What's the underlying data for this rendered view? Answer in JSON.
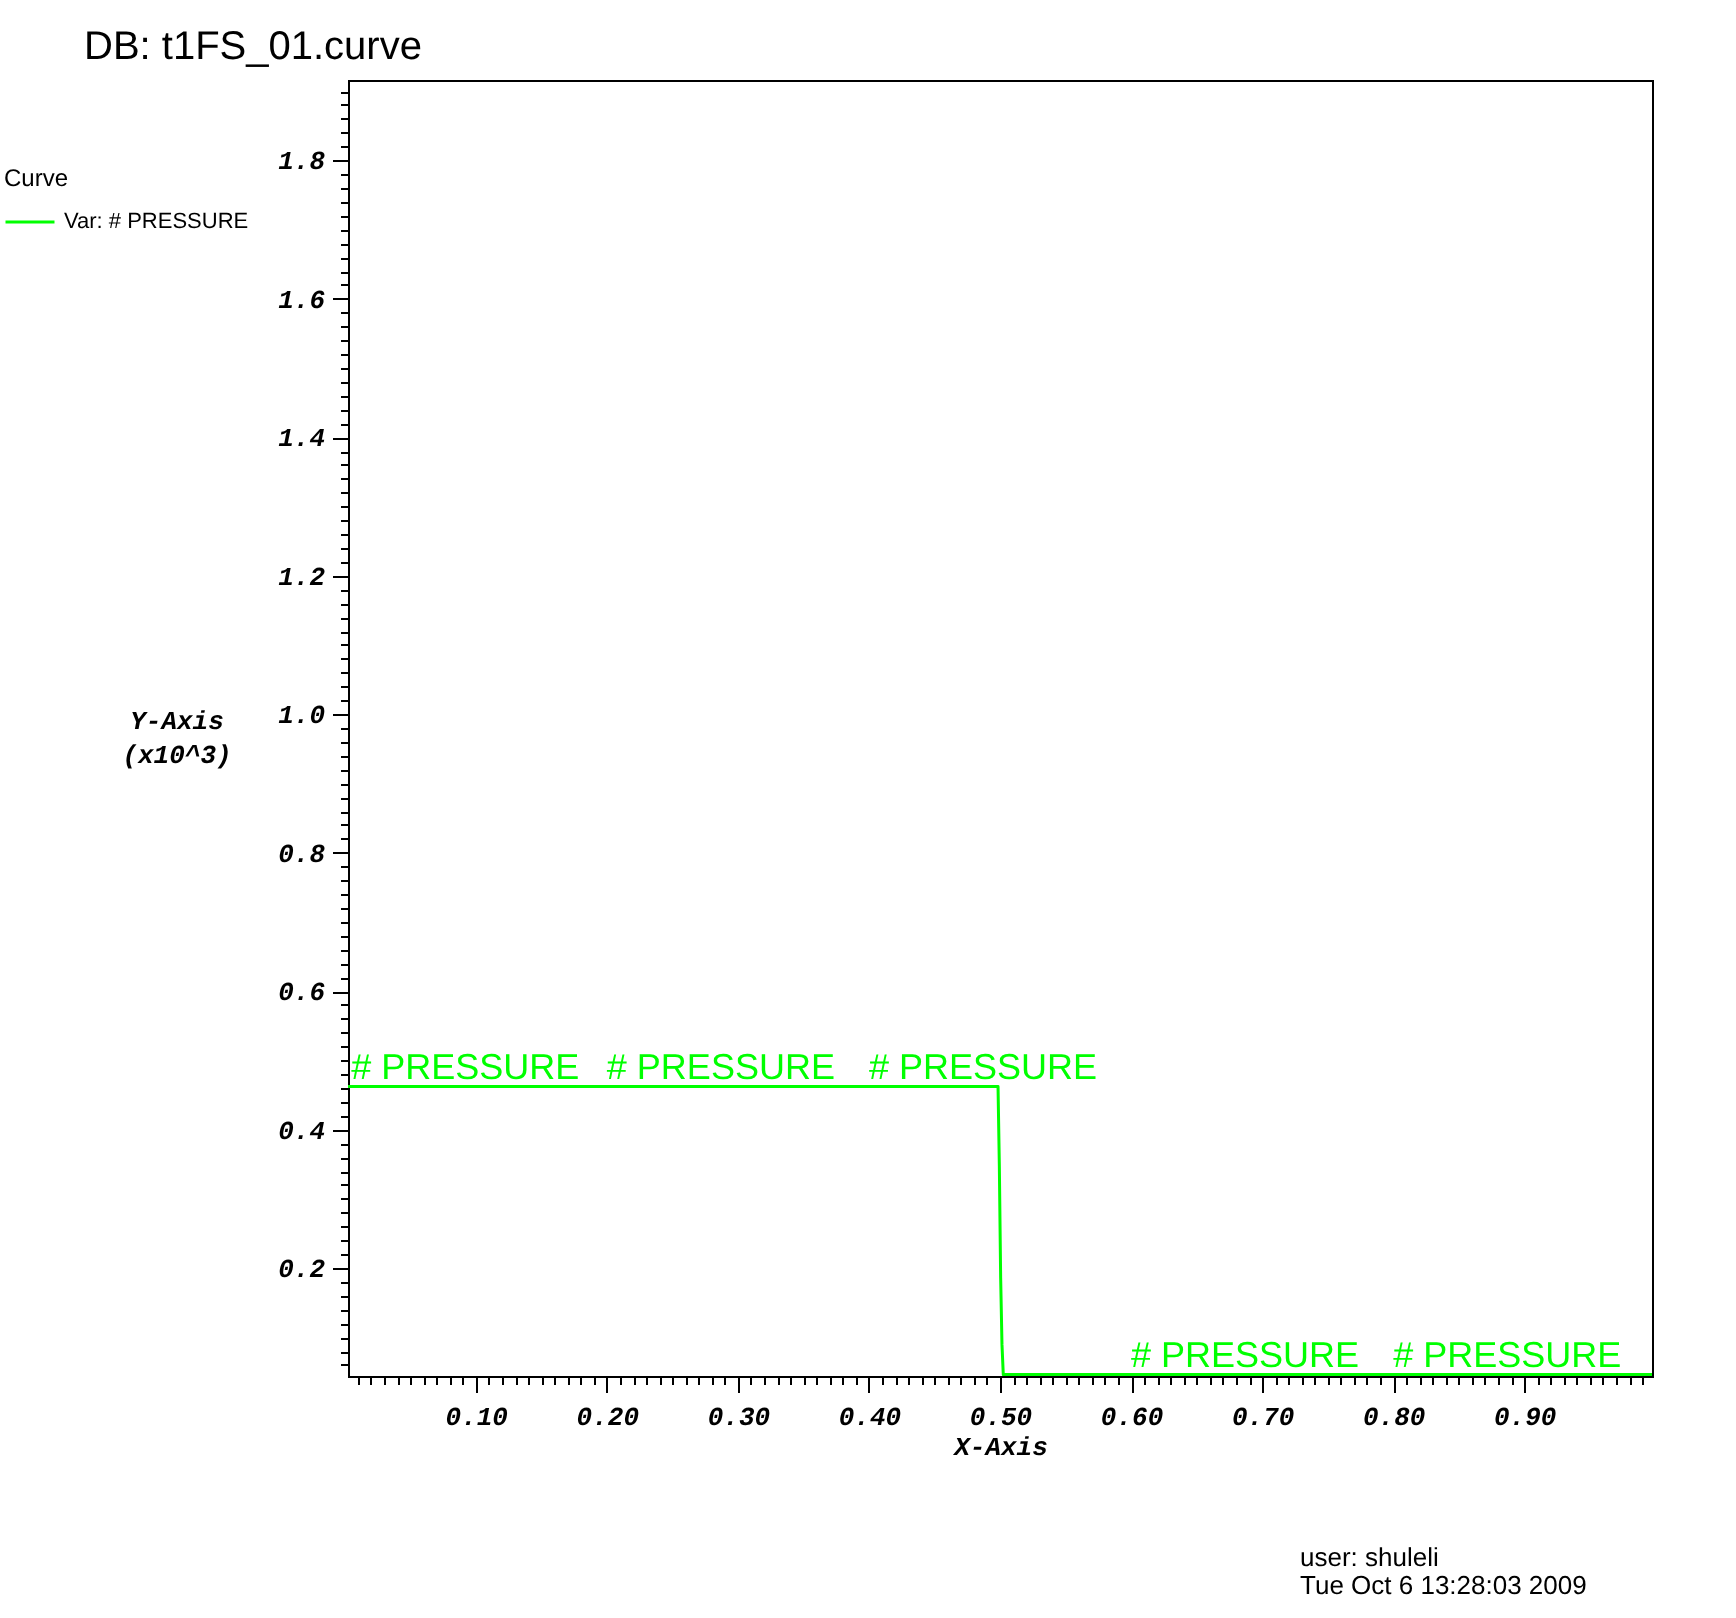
{
  "chart_data": {
    "type": "line",
    "title": "DB: t1FS_01.curve",
    "xlabel": "X-Axis",
    "ylabel": "Y-Axis\n(x10^3)",
    "legend_title": "Curve",
    "legend": "top left",
    "grid": false,
    "line_style": "solid",
    "xlim": [
      0.0025,
      0.9975
    ],
    "ylim": [
      0.044,
      1.916
    ],
    "xticks": [
      {
        "value": 0.01,
        "label": null
      },
      {
        "value": 0.02,
        "label": null
      },
      {
        "value": 0.03,
        "label": null
      },
      {
        "value": 0.04,
        "label": null
      },
      {
        "value": 0.05,
        "label": null
      },
      {
        "value": 0.06,
        "label": null
      },
      {
        "value": 0.07,
        "label": null
      },
      {
        "value": 0.08,
        "label": null
      },
      {
        "value": 0.09,
        "label": null
      },
      {
        "value": 0.1,
        "label": "0.10"
      },
      {
        "value": 0.11,
        "label": null
      },
      {
        "value": 0.12,
        "label": null
      },
      {
        "value": 0.13,
        "label": null
      },
      {
        "value": 0.14,
        "label": null
      },
      {
        "value": 0.15,
        "label": null
      },
      {
        "value": 0.16,
        "label": null
      },
      {
        "value": 0.17,
        "label": null
      },
      {
        "value": 0.18,
        "label": null
      },
      {
        "value": 0.19,
        "label": null
      },
      {
        "value": 0.2,
        "label": "0.20"
      },
      {
        "value": 0.21,
        "label": null
      },
      {
        "value": 0.22,
        "label": null
      },
      {
        "value": 0.23,
        "label": null
      },
      {
        "value": 0.24,
        "label": null
      },
      {
        "value": 0.25,
        "label": null
      },
      {
        "value": 0.26,
        "label": null
      },
      {
        "value": 0.27,
        "label": null
      },
      {
        "value": 0.28,
        "label": null
      },
      {
        "value": 0.29,
        "label": null
      },
      {
        "value": 0.3,
        "label": "0.30"
      },
      {
        "value": 0.31,
        "label": null
      },
      {
        "value": 0.32,
        "label": null
      },
      {
        "value": 0.33,
        "label": null
      },
      {
        "value": 0.34,
        "label": null
      },
      {
        "value": 0.35,
        "label": null
      },
      {
        "value": 0.36,
        "label": null
      },
      {
        "value": 0.37,
        "label": null
      },
      {
        "value": 0.38,
        "label": null
      },
      {
        "value": 0.39,
        "label": null
      },
      {
        "value": 0.4,
        "label": "0.40"
      },
      {
        "value": 0.41,
        "label": null
      },
      {
        "value": 0.42,
        "label": null
      },
      {
        "value": 0.43,
        "label": null
      },
      {
        "value": 0.44,
        "label": null
      },
      {
        "value": 0.45,
        "label": null
      },
      {
        "value": 0.46,
        "label": null
      },
      {
        "value": 0.47,
        "label": null
      },
      {
        "value": 0.48,
        "label": null
      },
      {
        "value": 0.49,
        "label": null
      },
      {
        "value": 0.5,
        "label": "0.50"
      },
      {
        "value": 0.51,
        "label": null
      },
      {
        "value": 0.52,
        "label": null
      },
      {
        "value": 0.53,
        "label": null
      },
      {
        "value": 0.54,
        "label": null
      },
      {
        "value": 0.55,
        "label": null
      },
      {
        "value": 0.56,
        "label": null
      },
      {
        "value": 0.57,
        "label": null
      },
      {
        "value": 0.58,
        "label": null
      },
      {
        "value": 0.59,
        "label": null
      },
      {
        "value": 0.6,
        "label": "0.60"
      },
      {
        "value": 0.61,
        "label": null
      },
      {
        "value": 0.62,
        "label": null
      },
      {
        "value": 0.63,
        "label": null
      },
      {
        "value": 0.64,
        "label": null
      },
      {
        "value": 0.65,
        "label": null
      },
      {
        "value": 0.66,
        "label": null
      },
      {
        "value": 0.67,
        "label": null
      },
      {
        "value": 0.68,
        "label": null
      },
      {
        "value": 0.69,
        "label": null
      },
      {
        "value": 0.7,
        "label": "0.70"
      },
      {
        "value": 0.71,
        "label": null
      },
      {
        "value": 0.72,
        "label": null
      },
      {
        "value": 0.73,
        "label": null
      },
      {
        "value": 0.74,
        "label": null
      },
      {
        "value": 0.75,
        "label": null
      },
      {
        "value": 0.76,
        "label": null
      },
      {
        "value": 0.77,
        "label": null
      },
      {
        "value": 0.78,
        "label": null
      },
      {
        "value": 0.79,
        "label": null
      },
      {
        "value": 0.8,
        "label": "0.80"
      },
      {
        "value": 0.81,
        "label": null
      },
      {
        "value": 0.82,
        "label": null
      },
      {
        "value": 0.83,
        "label": null
      },
      {
        "value": 0.84,
        "label": null
      },
      {
        "value": 0.85,
        "label": null
      },
      {
        "value": 0.86,
        "label": null
      },
      {
        "value": 0.87,
        "label": null
      },
      {
        "value": 0.88,
        "label": null
      },
      {
        "value": 0.89,
        "label": null
      },
      {
        "value": 0.9,
        "label": "0.90"
      },
      {
        "value": 0.91,
        "label": null
      },
      {
        "value": 0.92,
        "label": null
      },
      {
        "value": 0.93,
        "label": null
      },
      {
        "value": 0.94,
        "label": null
      },
      {
        "value": 0.95,
        "label": null
      },
      {
        "value": 0.96,
        "label": null
      },
      {
        "value": 0.97,
        "label": null
      },
      {
        "value": 0.98,
        "label": null
      },
      {
        "value": 0.99,
        "label": null
      }
    ],
    "yticks": [
      {
        "value": 0.06,
        "label": null
      },
      {
        "value": 0.08,
        "label": null
      },
      {
        "value": 0.1,
        "label": null
      },
      {
        "value": 0.12,
        "label": null
      },
      {
        "value": 0.14,
        "label": null
      },
      {
        "value": 0.16,
        "label": null
      },
      {
        "value": 0.18,
        "label": null
      },
      0.2,
      {
        "value": 0.22,
        "label": null
      },
      {
        "value": 0.24,
        "label": null
      },
      {
        "value": 0.26,
        "label": null
      },
      {
        "value": 0.28,
        "label": null
      },
      {
        "value": 0.3,
        "label": null
      },
      {
        "value": 0.32,
        "label": null
      },
      {
        "value": 0.34,
        "label": null
      },
      {
        "value": 0.36,
        "label": null
      },
      {
        "value": 0.38,
        "label": null
      },
      0.4,
      {
        "value": 0.42,
        "label": null
      },
      {
        "value": 0.44,
        "label": null
      },
      {
        "value": 0.46,
        "label": null
      },
      {
        "value": 0.48,
        "label": null
      },
      {
        "value": 0.5,
        "label": null
      },
      {
        "value": 0.52,
        "label": null
      },
      {
        "value": 0.54,
        "label": null
      },
      {
        "value": 0.56,
        "label": null
      },
      {
        "value": 0.58,
        "label": null
      },
      0.6,
      {
        "value": 0.62,
        "label": null
      },
      {
        "value": 0.64,
        "label": null
      },
      {
        "value": 0.66,
        "label": null
      },
      {
        "value": 0.68,
        "label": null
      },
      {
        "value": 0.7,
        "label": null
      },
      {
        "value": 0.72,
        "label": null
      },
      {
        "value": 0.74,
        "label": null
      },
      {
        "value": 0.76,
        "label": null
      },
      {
        "value": 0.78,
        "label": null
      },
      0.8,
      {
        "value": 0.82,
        "label": null
      },
      {
        "value": 0.84,
        "label": null
      },
      {
        "value": 0.86,
        "label": null
      },
      {
        "value": 0.88,
        "label": null
      },
      {
        "value": 0.9,
        "label": null
      },
      {
        "value": 0.92,
        "label": null
      },
      {
        "value": 0.94,
        "label": null
      },
      {
        "value": 0.96,
        "label": null
      },
      {
        "value": 0.98,
        "label": null
      },
      {
        "value": 1,
        "label": "1.0"
      },
      {
        "value": 1.02,
        "label": null
      },
      {
        "value": 1.04,
        "label": null
      },
      {
        "value": 1.06,
        "label": null
      },
      {
        "value": 1.08,
        "label": null
      },
      {
        "value": 1.1,
        "label": null
      },
      {
        "value": 1.12,
        "label": null
      },
      {
        "value": 1.14,
        "label": null
      },
      {
        "value": 1.16,
        "label": null
      },
      {
        "value": 1.18,
        "label": null
      },
      1.2,
      {
        "value": 1.22,
        "label": null
      },
      {
        "value": 1.24,
        "label": null
      },
      {
        "value": 1.26,
        "label": null
      },
      {
        "value": 1.28,
        "label": null
      },
      {
        "value": 1.3,
        "label": null
      },
      {
        "value": 1.32,
        "label": null
      },
      {
        "value": 1.34,
        "label": null
      },
      {
        "value": 1.36,
        "label": null
      },
      {
        "value": 1.38,
        "label": null
      },
      1.4,
      {
        "value": 1.42,
        "label": null
      },
      {
        "value": 1.44,
        "label": null
      },
      {
        "value": 1.46,
        "label": null
      },
      {
        "value": 1.48,
        "label": null
      },
      {
        "value": 1.5,
        "label": null
      },
      {
        "value": 1.52,
        "label": null
      },
      {
        "value": 1.54,
        "label": null
      },
      {
        "value": 1.56,
        "label": null
      },
      {
        "value": 1.58,
        "label": null
      },
      1.6,
      {
        "value": 1.62,
        "label": null
      },
      {
        "value": 1.64,
        "label": null
      },
      {
        "value": 1.66,
        "label": null
      },
      {
        "value": 1.68,
        "label": null
      },
      {
        "value": 1.7,
        "label": null
      },
      {
        "value": 1.72,
        "label": null
      },
      {
        "value": 1.74,
        "label": null
      },
      {
        "value": 1.76,
        "label": null
      },
      {
        "value": 1.78,
        "label": null
      },
      1.8,
      {
        "value": 1.82,
        "label": null
      },
      {
        "value": 1.84,
        "label": null
      },
      {
        "value": 1.86,
        "label": null
      },
      {
        "value": 1.88,
        "label": null
      },
      {
        "value": 1.9,
        "label": null
      }
    ],
    "x": [
      0.0025,
      0.4985,
      0.4995,
      0.5005,
      0.5015,
      0.5025,
      0.9975
    ],
    "series": [
      {
        "name": "Var: # PRESSURE",
        "color": "#00ff00",
        "values": [
          0.462,
          0.462,
          0.347,
          0.186,
          0.09,
          0.046,
          0.046
        ]
      }
    ],
    "annotations": [
      {
        "text": "# PRESSURE",
        "x": 0.005,
        "y": 0.462
      },
      {
        "text": "# PRESSURE",
        "x": 0.2,
        "y": 0.462
      },
      {
        "text": "# PRESSURE",
        "x": 0.4,
        "y": 0.462
      },
      {
        "text": "# PRESSURE",
        "x": 0.6,
        "y": 0.046
      },
      {
        "text": "# PRESSURE",
        "x": 0.8,
        "y": 0.046
      },
      "user: shuleli",
      "Tue Oct  6 13:28:03 2009"
    ]
  }
}
